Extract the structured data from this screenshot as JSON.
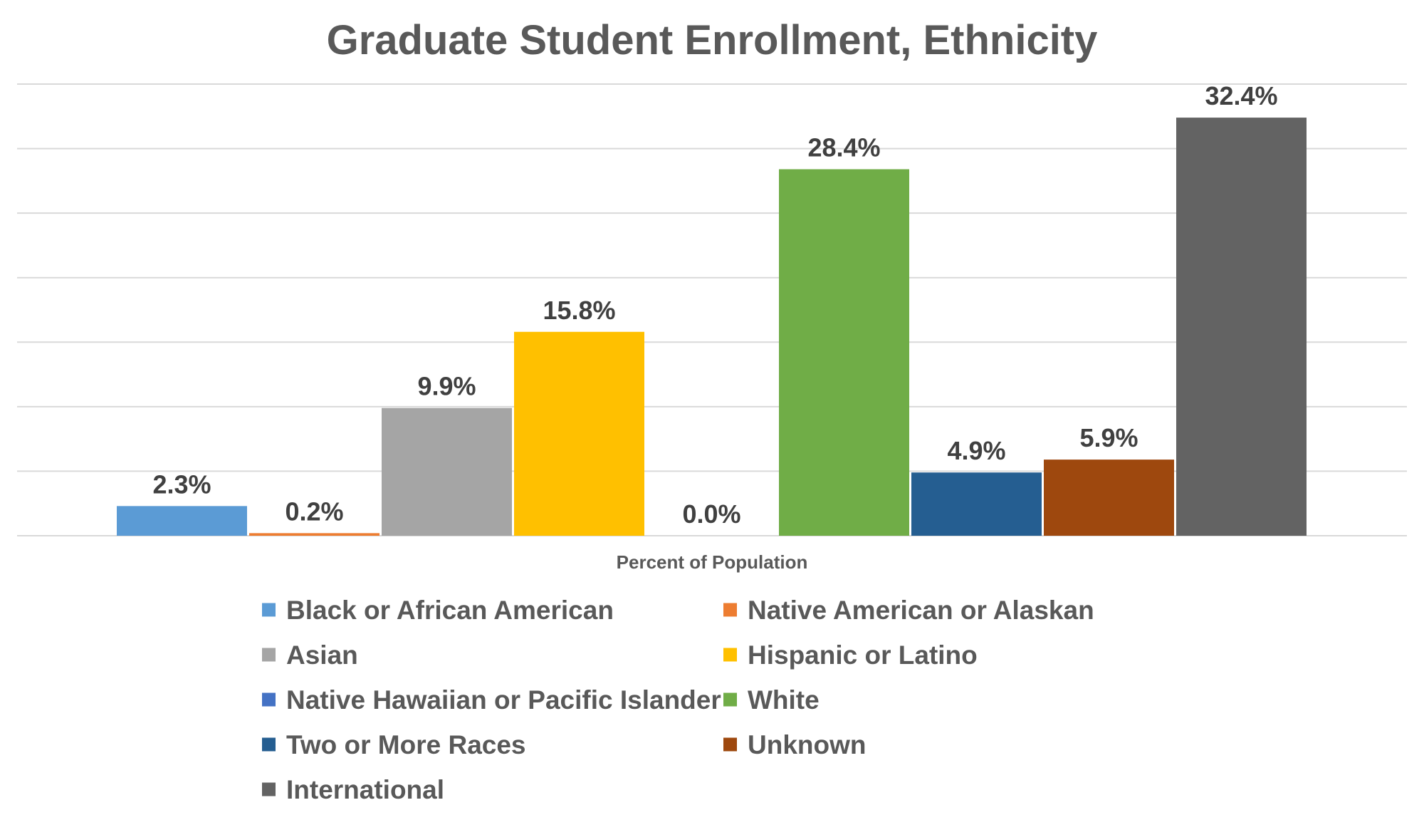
{
  "chart_data": {
    "type": "bar",
    "title": "Graduate Student Enrollment, Ethnicity",
    "xlabel": "Percent of Population",
    "ylabel": "",
    "ylim": [
      0,
      35
    ],
    "grid": true,
    "legend_position": "bottom",
    "value_format": "percent-1dp",
    "series": [
      {
        "name": "Black or African American",
        "value": 2.3,
        "label": "2.3%",
        "color": "#5b9bd5"
      },
      {
        "name": "Native American or Alaskan",
        "value": 0.2,
        "label": "0.2%",
        "color": "#ed7d31"
      },
      {
        "name": "Asian",
        "value": 9.9,
        "label": "9.9%",
        "color": "#a5a5a5"
      },
      {
        "name": "Hispanic or Latino",
        "value": 15.8,
        "label": "15.8%",
        "color": "#ffc000"
      },
      {
        "name": "Native Hawaiian or Pacific Islander",
        "value": 0.0,
        "label": "0.0%",
        "color": "#4472c4"
      },
      {
        "name": "White",
        "value": 28.4,
        "label": "28.4%",
        "color": "#70ad47"
      },
      {
        "name": "Two or More Races",
        "value": 4.9,
        "label": "4.9%",
        "color": "#255e91"
      },
      {
        "name": "Unknown",
        "value": 5.9,
        "label": "5.9%",
        "color": "#9e480e"
      },
      {
        "name": "International",
        "value": 32.4,
        "label": "32.4%",
        "color": "#636363"
      }
    ]
  }
}
